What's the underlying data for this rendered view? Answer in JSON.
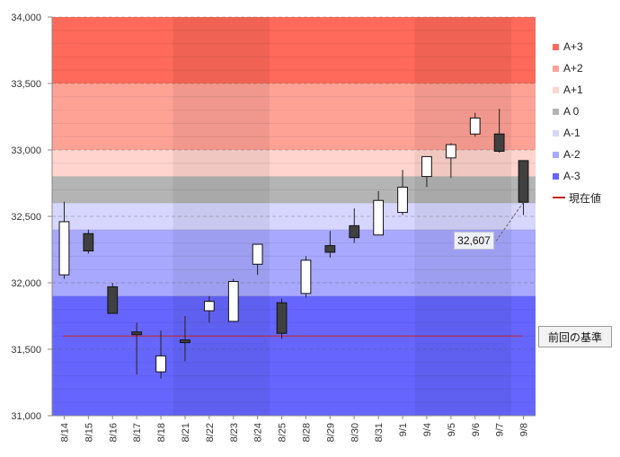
{
  "chart_data": {
    "type": "candlestick",
    "ylim": [
      31000,
      34000
    ],
    "y_ticks": [
      "31,000",
      "31,500",
      "32,000",
      "32,500",
      "33,000",
      "33,500",
      "34,000"
    ],
    "categories": [
      "8/14",
      "8/15",
      "8/16",
      "8/17",
      "8/18",
      "8/21",
      "8/22",
      "8/23",
      "8/24",
      "8/25",
      "8/28",
      "8/29",
      "8/30",
      "8/31",
      "9/1",
      "9/4",
      "9/5",
      "9/6",
      "9/7",
      "9/8"
    ],
    "candles": [
      {
        "o": 32060,
        "h": 32610,
        "l": 32030,
        "c": 32460
      },
      {
        "o": 32370,
        "h": 32400,
        "l": 32220,
        "c": 32240
      },
      {
        "o": 31970,
        "h": 32000,
        "l": 31770,
        "c": 31770
      },
      {
        "o": 31630,
        "h": 31700,
        "l": 31310,
        "c": 31610
      },
      {
        "o": 31330,
        "h": 31640,
        "l": 31280,
        "c": 31450
      },
      {
        "o": 31570,
        "h": 31750,
        "l": 31410,
        "c": 31550
      },
      {
        "o": 31790,
        "h": 31900,
        "l": 31700,
        "c": 31860
      },
      {
        "o": 31710,
        "h": 32030,
        "l": 31710,
        "c": 32010
      },
      {
        "o": 32140,
        "h": 32290,
        "l": 32060,
        "c": 32290
      },
      {
        "o": 31850,
        "h": 31880,
        "l": 31580,
        "c": 31620
      },
      {
        "o": 31920,
        "h": 32200,
        "l": 31890,
        "c": 32170
      },
      {
        "o": 32280,
        "h": 32390,
        "l": 32190,
        "c": 32230
      },
      {
        "o": 32430,
        "h": 32560,
        "l": 32300,
        "c": 32340
      },
      {
        "o": 32360,
        "h": 32690,
        "l": 32360,
        "c": 32620
      },
      {
        "o": 32530,
        "h": 32850,
        "l": 32510,
        "c": 32720
      },
      {
        "o": 32800,
        "h": 32950,
        "l": 32720,
        "c": 32950
      },
      {
        "o": 32940,
        "h": 33050,
        "l": 32790,
        "c": 33040
      },
      {
        "o": 33120,
        "h": 33280,
        "l": 33100,
        "c": 33240
      },
      {
        "o": 33120,
        "h": 33310,
        "l": 32980,
        "c": 32990
      },
      {
        "o": 32920,
        "h": 32920,
        "l": 32510,
        "c": 32607
      }
    ],
    "bands": [
      {
        "name": "A+3",
        "from": 33500,
        "to": 34000,
        "color": "#ff6a5a"
      },
      {
        "name": "A+2",
        "from": 33000,
        "to": 33500,
        "color": "#ffa296"
      },
      {
        "name": "A+1",
        "from": 32800,
        "to": 33000,
        "color": "#ffd4ce"
      },
      {
        "name": "A 0",
        "from": 32600,
        "to": 32800,
        "color": "#b4b4b4"
      },
      {
        "name": "A-1",
        "from": 32400,
        "to": 32600,
        "color": "#d6d6ff"
      },
      {
        "name": "A-2",
        "from": 31900,
        "to": 32400,
        "color": "#a8a8ff"
      },
      {
        "name": "A-3",
        "from": 31000,
        "to": 31900,
        "color": "#6666ff"
      }
    ],
    "shaded_periods": [
      [
        5,
        9
      ],
      [
        15,
        19
      ]
    ],
    "reference": {
      "label": "前回の基準",
      "value": 31600,
      "color": "#cc2222"
    },
    "current_value_label": "32,607",
    "current_value": 32607
  },
  "legend": {
    "items": [
      {
        "label": "A+3",
        "color": "#ff6a5a"
      },
      {
        "label": "A+2",
        "color": "#ffa296"
      },
      {
        "label": "A+1",
        "color": "#ffd4ce"
      },
      {
        "label": "A 0",
        "color": "#b4b4b4"
      },
      {
        "label": "A-1",
        "color": "#d6d6ff"
      },
      {
        "label": "A-2",
        "color": "#a8a8ff"
      },
      {
        "label": "A-3",
        "color": "#6666ff"
      }
    ],
    "current_line_label": "現在値",
    "current_line_color": "#cc2222"
  },
  "callout_label": "前回の基準",
  "price_label": "32,607"
}
